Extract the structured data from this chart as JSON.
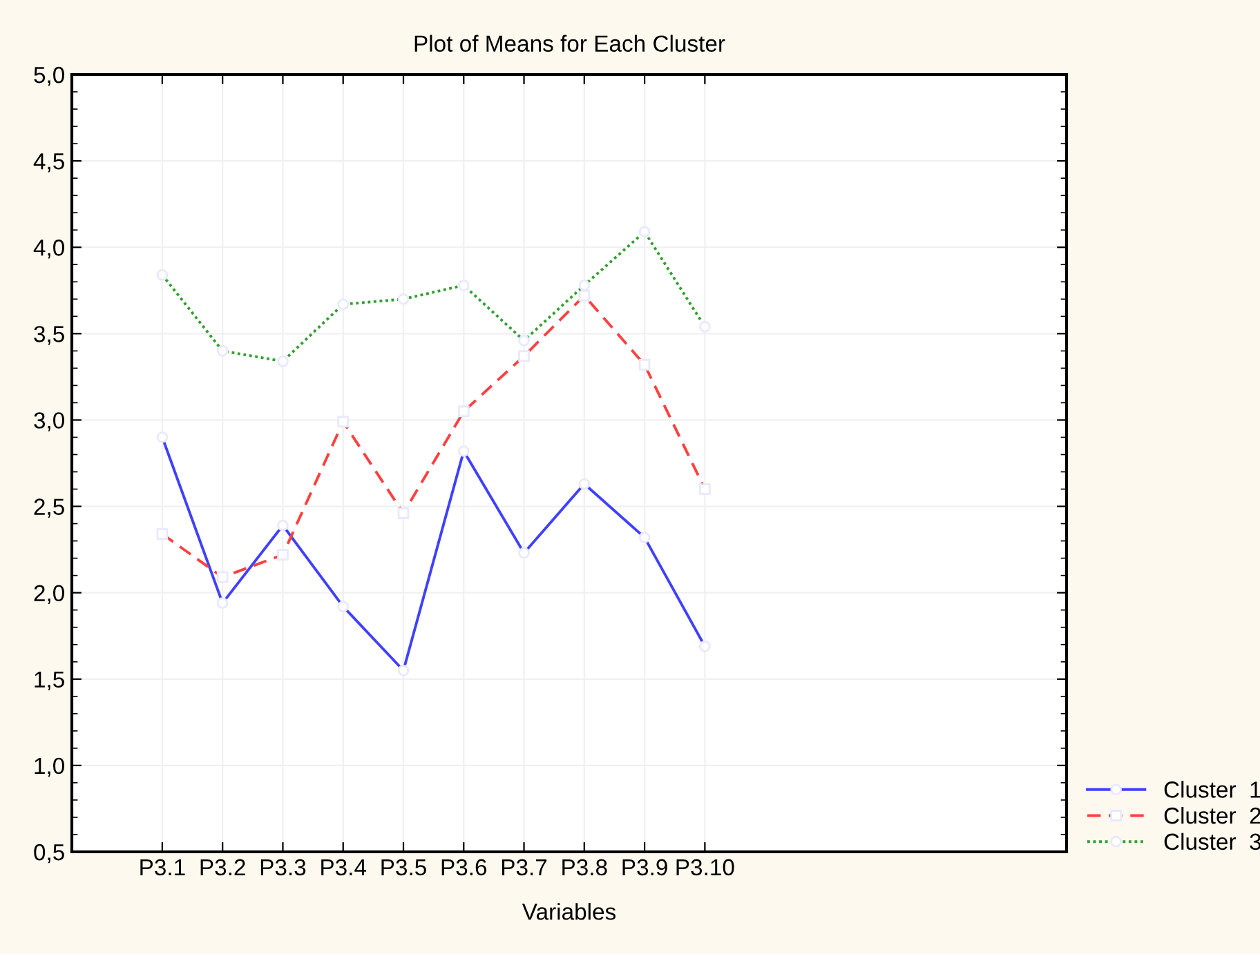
{
  "chart_data": {
    "type": "line",
    "title": "Plot of Means for Each Cluster",
    "xlabel": "Variables",
    "categories": [
      "P3.1",
      "P3.2",
      "P3.3",
      "P3.4",
      "P3.5",
      "P3.6",
      "P3.7",
      "P3.8",
      "P3.9",
      "P3.10"
    ],
    "series": [
      {
        "name": "Cluster  1",
        "color": "#4040ff",
        "line_style": "solid",
        "marker": "circle",
        "values": [
          2.9,
          1.94,
          2.39,
          1.92,
          1.55,
          2.82,
          2.23,
          2.63,
          2.32,
          1.69
        ]
      },
      {
        "name": "Cluster  2",
        "color": "#ff4040",
        "line_style": "dashed",
        "marker": "square",
        "values": [
          2.34,
          2.09,
          2.22,
          2.99,
          2.46,
          3.05,
          3.37,
          3.72,
          3.32,
          2.6
        ]
      },
      {
        "name": "Cluster  3",
        "color": "#30a030",
        "line_style": "dotted",
        "marker": "circle",
        "values": [
          3.84,
          3.4,
          3.34,
          3.67,
          3.7,
          3.78,
          3.46,
          3.78,
          4.09,
          3.54
        ]
      }
    ],
    "ylim": [
      0.5,
      5.0
    ],
    "yticks": [
      {
        "value": 0.5,
        "label": "0,5"
      },
      {
        "value": 1.0,
        "label": "1,0"
      },
      {
        "value": 1.5,
        "label": "1,5"
      },
      {
        "value": 2.0,
        "label": "2,0"
      },
      {
        "value": 2.5,
        "label": "2,5"
      },
      {
        "value": 3.0,
        "label": "3,0"
      },
      {
        "value": 3.5,
        "label": "3,5"
      },
      {
        "value": 4.0,
        "label": "4,0"
      },
      {
        "value": 4.5,
        "label": "4,5"
      },
      {
        "value": 5.0,
        "label": "5,0"
      }
    ],
    "grid": true,
    "legend": "bottom right"
  }
}
